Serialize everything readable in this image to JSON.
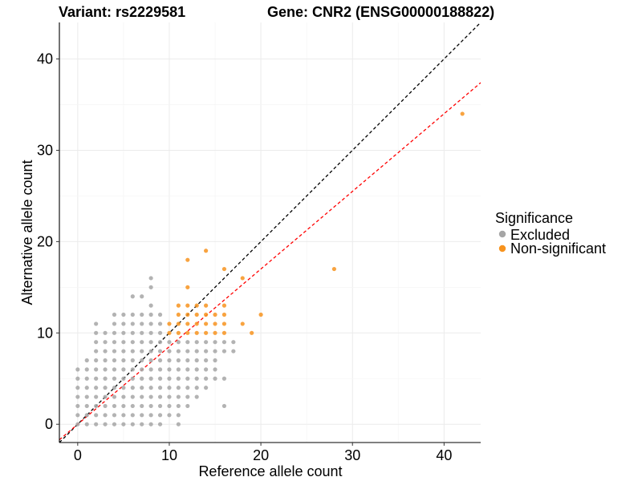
{
  "chart_data": {
    "type": "scatter",
    "title_left": "Variant: rs2229581",
    "title_right": "Gene: CNR2 (ENSG00000188822)",
    "xlabel": "Reference allele count",
    "ylabel": "Alternative allele count",
    "xlim": [
      -2,
      44
    ],
    "ylim": [
      -2,
      44
    ],
    "x_ticks": [
      0,
      10,
      20,
      30,
      40
    ],
    "y_ticks": [
      0,
      10,
      20,
      30,
      40
    ],
    "grid": true,
    "legend": {
      "title": "Significance",
      "position": "right",
      "entries": [
        {
          "label": "Excluded",
          "color": "#a6a6a6"
        },
        {
          "label": "Non-significant",
          "color": "#f7931e"
        }
      ]
    },
    "reference_lines": [
      {
        "name": "identity",
        "slope": 1.0,
        "intercept": 0,
        "color": "#000000",
        "style": "dashed"
      },
      {
        "name": "fit",
        "slope": 0.85,
        "intercept": 0,
        "color": "#ff0000",
        "style": "dashed"
      }
    ],
    "series": [
      {
        "name": "Excluded",
        "color": "#a6a6a6",
        "points": [
          [
            0,
            0
          ],
          [
            0,
            1
          ],
          [
            0,
            2
          ],
          [
            0,
            3
          ],
          [
            0,
            4
          ],
          [
            0,
            5
          ],
          [
            0,
            6
          ],
          [
            1,
            0
          ],
          [
            1,
            1
          ],
          [
            1,
            2
          ],
          [
            1,
            3
          ],
          [
            1,
            4
          ],
          [
            1,
            5
          ],
          [
            1,
            6
          ],
          [
            1,
            7
          ],
          [
            2,
            0
          ],
          [
            2,
            1
          ],
          [
            2,
            2
          ],
          [
            2,
            3
          ],
          [
            2,
            4
          ],
          [
            2,
            5
          ],
          [
            2,
            6
          ],
          [
            2,
            7
          ],
          [
            2,
            8
          ],
          [
            2,
            9
          ],
          [
            2,
            10
          ],
          [
            2,
            11
          ],
          [
            3,
            0
          ],
          [
            3,
            1
          ],
          [
            3,
            2
          ],
          [
            3,
            3
          ],
          [
            3,
            4
          ],
          [
            3,
            5
          ],
          [
            3,
            6
          ],
          [
            3,
            7
          ],
          [
            3,
            8
          ],
          [
            3,
            9
          ],
          [
            3,
            10
          ],
          [
            4,
            0
          ],
          [
            4,
            1
          ],
          [
            4,
            2
          ],
          [
            4,
            3
          ],
          [
            4,
            4
          ],
          [
            4,
            5
          ],
          [
            4,
            6
          ],
          [
            4,
            7
          ],
          [
            4,
            8
          ],
          [
            4,
            9
          ],
          [
            4,
            10
          ],
          [
            4,
            11
          ],
          [
            4,
            12
          ],
          [
            5,
            0
          ],
          [
            5,
            1
          ],
          [
            5,
            2
          ],
          [
            5,
            3
          ],
          [
            5,
            4
          ],
          [
            5,
            5
          ],
          [
            5,
            6
          ],
          [
            5,
            7
          ],
          [
            5,
            8
          ],
          [
            5,
            9
          ],
          [
            5,
            10
          ],
          [
            5,
            11
          ],
          [
            5,
            12
          ],
          [
            6,
            0
          ],
          [
            6,
            1
          ],
          [
            6,
            2
          ],
          [
            6,
            3
          ],
          [
            6,
            4
          ],
          [
            6,
            5
          ],
          [
            6,
            6
          ],
          [
            6,
            7
          ],
          [
            6,
            8
          ],
          [
            6,
            9
          ],
          [
            6,
            10
          ],
          [
            6,
            11
          ],
          [
            6,
            12
          ],
          [
            6,
            14
          ],
          [
            7,
            0
          ],
          [
            7,
            1
          ],
          [
            7,
            2
          ],
          [
            7,
            3
          ],
          [
            7,
            4
          ],
          [
            7,
            5
          ],
          [
            7,
            6
          ],
          [
            7,
            7
          ],
          [
            7,
            8
          ],
          [
            7,
            9
          ],
          [
            7,
            10
          ],
          [
            7,
            11
          ],
          [
            7,
            12
          ],
          [
            7,
            14
          ],
          [
            8,
            0
          ],
          [
            8,
            1
          ],
          [
            8,
            2
          ],
          [
            8,
            3
          ],
          [
            8,
            4
          ],
          [
            8,
            5
          ],
          [
            8,
            6
          ],
          [
            8,
            7
          ],
          [
            8,
            8
          ],
          [
            8,
            9
          ],
          [
            8,
            10
          ],
          [
            8,
            11
          ],
          [
            8,
            12
          ],
          [
            8,
            13
          ],
          [
            8,
            15
          ],
          [
            8,
            16
          ],
          [
            9,
            0
          ],
          [
            9,
            1
          ],
          [
            9,
            2
          ],
          [
            9,
            3
          ],
          [
            9,
            4
          ],
          [
            9,
            5
          ],
          [
            9,
            6
          ],
          [
            9,
            7
          ],
          [
            9,
            8
          ],
          [
            9,
            9
          ],
          [
            9,
            10
          ],
          [
            9,
            11
          ],
          [
            9,
            12
          ],
          [
            10,
            1
          ],
          [
            10,
            2
          ],
          [
            10,
            3
          ],
          [
            10,
            4
          ],
          [
            10,
            5
          ],
          [
            10,
            6
          ],
          [
            10,
            7
          ],
          [
            10,
            8
          ],
          [
            10,
            9
          ],
          [
            11,
            0
          ],
          [
            11,
            1
          ],
          [
            11,
            2
          ],
          [
            11,
            3
          ],
          [
            11,
            4
          ],
          [
            11,
            5
          ],
          [
            11,
            6
          ],
          [
            11,
            7
          ],
          [
            11,
            8
          ],
          [
            11,
            9
          ],
          [
            12,
            2
          ],
          [
            12,
            3
          ],
          [
            12,
            4
          ],
          [
            12,
            5
          ],
          [
            12,
            6
          ],
          [
            12,
            7
          ],
          [
            12,
            8
          ],
          [
            12,
            9
          ],
          [
            13,
            3
          ],
          [
            13,
            4
          ],
          [
            13,
            5
          ],
          [
            13,
            6
          ],
          [
            13,
            7
          ],
          [
            13,
            8
          ],
          [
            13,
            9
          ],
          [
            14,
            4
          ],
          [
            14,
            5
          ],
          [
            14,
            6
          ],
          [
            14,
            7
          ],
          [
            14,
            8
          ],
          [
            14,
            9
          ],
          [
            15,
            5
          ],
          [
            15,
            6
          ],
          [
            15,
            7
          ],
          [
            15,
            8
          ],
          [
            15,
            9
          ],
          [
            16,
            2
          ],
          [
            16,
            5
          ],
          [
            16,
            8
          ],
          [
            16,
            9
          ],
          [
            17,
            8
          ],
          [
            17,
            9
          ]
        ]
      },
      {
        "name": "Non-significant",
        "color": "#f7931e",
        "points": [
          [
            10,
            10
          ],
          [
            10,
            11
          ],
          [
            11,
            10
          ],
          [
            11,
            11
          ],
          [
            11,
            12
          ],
          [
            11,
            13
          ],
          [
            12,
            10
          ],
          [
            12,
            11
          ],
          [
            12,
            12
          ],
          [
            12,
            13
          ],
          [
            12,
            15
          ],
          [
            12,
            18
          ],
          [
            13,
            10
          ],
          [
            13,
            11
          ],
          [
            13,
            12
          ],
          [
            13,
            13
          ],
          [
            14,
            10
          ],
          [
            14,
            11
          ],
          [
            14,
            12
          ],
          [
            14,
            13
          ],
          [
            14,
            19
          ],
          [
            15,
            10
          ],
          [
            15,
            11
          ],
          [
            15,
            12
          ],
          [
            16,
            10
          ],
          [
            16,
            11
          ],
          [
            16,
            12
          ],
          [
            16,
            13
          ],
          [
            16,
            17
          ],
          [
            18,
            11
          ],
          [
            18,
            16
          ],
          [
            19,
            10
          ],
          [
            20,
            12
          ],
          [
            28,
            17
          ],
          [
            42,
            34
          ]
        ]
      }
    ]
  }
}
